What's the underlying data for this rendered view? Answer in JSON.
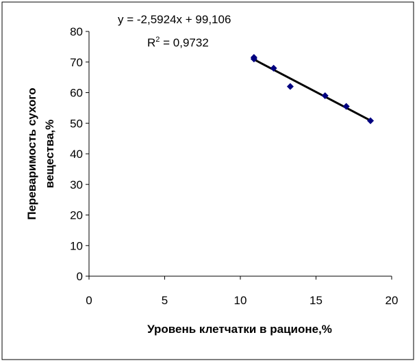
{
  "chart_data": {
    "type": "scatter",
    "xlabel": "Уровень клетчатки в рационе,%",
    "ylabel_lines": [
      "Переваримость сухого",
      "вещества,%"
    ],
    "xlim": [
      0,
      20
    ],
    "ylim": [
      0,
      80
    ],
    "xticks": [
      0,
      5,
      10,
      15,
      20
    ],
    "yticks": [
      0,
      10,
      20,
      30,
      40,
      50,
      60,
      70,
      80
    ],
    "grid": false,
    "points": [
      {
        "x": 10.9,
        "y": 71.5
      },
      {
        "x": 10.9,
        "y": 71.0
      },
      {
        "x": 12.2,
        "y": 68.0
      },
      {
        "x": 13.3,
        "y": 62.0
      },
      {
        "x": 15.6,
        "y": 59.0
      },
      {
        "x": 17.0,
        "y": 55.5
      },
      {
        "x": 18.6,
        "y": 50.8
      }
    ],
    "trendline": {
      "slope": -2.5924,
      "intercept": 99.106,
      "x_range": [
        10.9,
        18.6
      ]
    },
    "equation": "y = -2,5924x + 99,106",
    "r2_label": "R",
    "r2_sup": "2",
    "r2_value": " = 0,9732",
    "marker_color": "#000080",
    "line_color": "#000000"
  }
}
